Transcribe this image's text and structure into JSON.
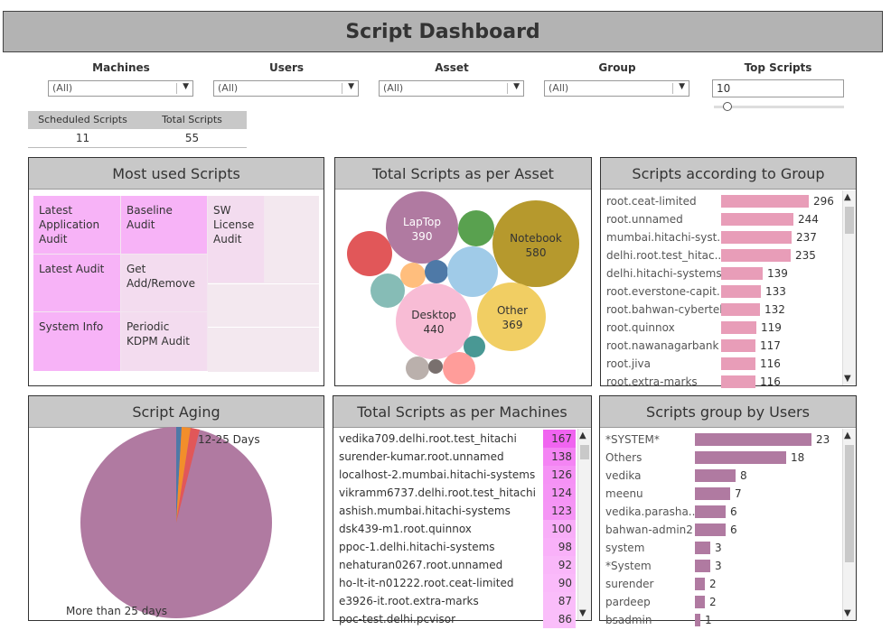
{
  "title": "Script Dashboard",
  "filters": [
    {
      "label": "Machines",
      "value": "(All)"
    },
    {
      "label": "Users",
      "value": "(All)"
    },
    {
      "label": "Asset",
      "value": "(All)"
    },
    {
      "label": "Group",
      "value": "(All)"
    }
  ],
  "top_scripts": {
    "label": "Top Scripts",
    "value": "10"
  },
  "kpis": {
    "scheduled_label": "Scheduled Scripts",
    "scheduled_value": "11",
    "total_label": "Total Scripts",
    "total_value": "55"
  },
  "most_used": {
    "title": "Most used Scripts",
    "tiles": [
      "Latest Application Audit",
      "Baseline Audit",
      "SW License Audit",
      "Latest Audit",
      "Get Add/Remove",
      "System Info",
      "Periodic KDPM Audit"
    ]
  },
  "asset": {
    "title": "Total Scripts as per Asset",
    "bubbles": [
      {
        "label": "LapTop",
        "value": "390"
      },
      {
        "label": "Notebook",
        "value": "580"
      },
      {
        "label": "Desktop",
        "value": "440"
      },
      {
        "label": "Other",
        "value": "369"
      }
    ]
  },
  "group": {
    "title": "Scripts according to Group",
    "rows": [
      {
        "label": "root.ceat-limited",
        "value": 296
      },
      {
        "label": "root.unnamed",
        "value": 244
      },
      {
        "label": "mumbai.hitachi-syst..",
        "value": 237
      },
      {
        "label": "delhi.root.test_hitac..",
        "value": 235
      },
      {
        "label": "delhi.hitachi-systems",
        "value": 139
      },
      {
        "label": "root.everstone-capit..",
        "value": 133
      },
      {
        "label": "root.bahwan-cybertek",
        "value": 132
      },
      {
        "label": "root.quinnox",
        "value": 119
      },
      {
        "label": "root.nawanagarbank",
        "value": 117
      },
      {
        "label": "root.jiva",
        "value": 116
      },
      {
        "label": "root.extra-marks",
        "value": 116
      }
    ]
  },
  "aging": {
    "title": "Script Aging",
    "label_small": "12-25 Days",
    "label_large": "More than 25 days"
  },
  "machines": {
    "title": "Total Scripts as per Machines",
    "rows": [
      {
        "label": "vedika709.delhi.root.test_hitachi",
        "value": 167
      },
      {
        "label": "surender-kumar.root.unnamed",
        "value": 138
      },
      {
        "label": "localhost-2.mumbai.hitachi-systems",
        "value": 126
      },
      {
        "label": "vikramm6737.delhi.root.test_hitachi",
        "value": 124
      },
      {
        "label": "ashish.mumbai.hitachi-systems",
        "value": 123
      },
      {
        "label": "dsk439-m1.root.quinnox",
        "value": 100
      },
      {
        "label": "ppoc-1.delhi.hitachi-systems",
        "value": 98
      },
      {
        "label": "nehaturan0267.root.unnamed",
        "value": 92
      },
      {
        "label": "ho-lt-it-n01222.root.ceat-limited",
        "value": 90
      },
      {
        "label": "e3926-it.root.extra-marks",
        "value": 87
      },
      {
        "label": "poc-test.delhi.pcvisor",
        "value": 86
      }
    ]
  },
  "users": {
    "title": "Scripts group by Users",
    "rows": [
      {
        "label": "*SYSTEM*",
        "value": 23
      },
      {
        "label": "Others",
        "value": 18
      },
      {
        "label": "vedika",
        "value": 8
      },
      {
        "label": "meenu",
        "value": 7
      },
      {
        "label": "vedika.parasha..",
        "value": 6
      },
      {
        "label": "bahwan-admin2",
        "value": 6
      },
      {
        "label": "system",
        "value": 3
      },
      {
        "label": "*System",
        "value": 3
      },
      {
        "label": "surender",
        "value": 2
      },
      {
        "label": "pardeep",
        "value": 2
      },
      {
        "label": "bsadmin",
        "value": 1
      }
    ]
  },
  "colors": {
    "pink_bar": "#e89db8",
    "mauve": "#b07aa1",
    "magenta_dark": "#f06cf0",
    "magenta_light": "#f7b4f7"
  }
}
